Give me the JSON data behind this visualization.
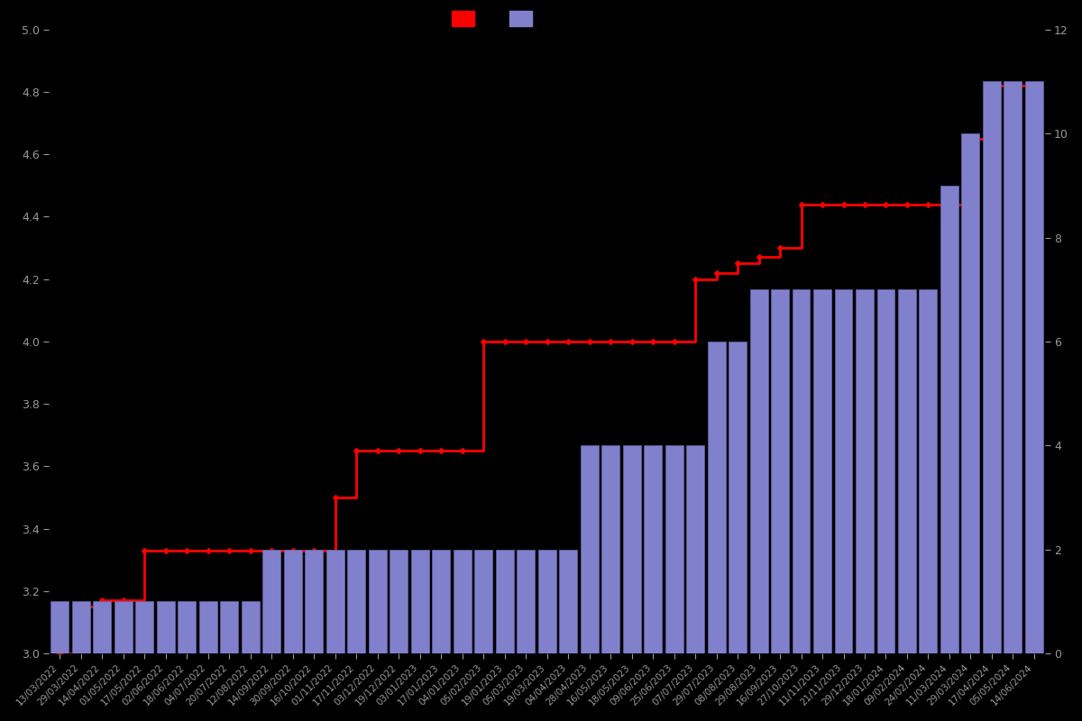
{
  "background_color": "#000000",
  "text_color": "#999999",
  "bar_color": "#8080cc",
  "bar_edge_color": "#6666aa",
  "line_color": "#ff0000",
  "marker_color": "#ff0000",
  "ylim_left": [
    3.0,
    5.0
  ],
  "ylim_right": [
    0,
    12
  ],
  "yticks_left": [
    3.0,
    3.2,
    3.4,
    3.6,
    3.8,
    4.0,
    4.2,
    4.4,
    4.6,
    4.8,
    5.0
  ],
  "yticks_right": [
    0,
    2,
    4,
    6,
    8,
    10,
    12
  ],
  "x_labels": [
    "13/03/2022",
    "29/03/2022",
    "14/04/2022",
    "01/05/2022",
    "17/05/2022",
    "02/06/2022",
    "18/06/2022",
    "04/07/2022",
    "20/07/2022",
    "12/08/2022",
    "14/09/2022",
    "30/09/2022",
    "16/10/2022",
    "01/11/2022",
    "17/11/2022",
    "03/12/2022",
    "19/12/2022",
    "03/01/2023",
    "17/01/2023",
    "04/01/2023",
    "05/02/2023",
    "19/01/2023",
    "05/03/2023",
    "19/03/2023",
    "04/04/2023",
    "28/04/2023",
    "16/05/2023",
    "18/05/2023",
    "09/06/2023",
    "25/06/2023",
    "07/07/2023",
    "29/07/2023",
    "08/08/2023",
    "29/08/2023",
    "16/09/2023",
    "27/10/2023",
    "11/11/2023",
    "21/11/2023",
    "29/12/2023",
    "18/01/2024",
    "09/02/2024",
    "24/02/2024",
    "11/03/2024",
    "29/03/2024",
    "17/04/2024",
    "05/05/2024",
    "14/06/2024"
  ],
  "bar_heights_right": [
    1,
    1,
    1,
    1,
    1,
    1,
    1,
    1,
    1,
    1,
    2,
    2,
    2,
    2,
    2,
    2,
    2,
    2,
    2,
    2,
    2,
    2,
    2,
    2,
    2,
    4,
    4,
    4,
    4,
    4,
    4,
    6,
    6,
    7,
    7,
    7,
    7,
    7,
    7,
    7,
    7,
    7,
    9,
    10,
    11,
    11,
    11
  ],
  "avg_ratings": [
    3.0,
    3.15,
    3.17,
    3.17,
    3.33,
    3.33,
    3.33,
    3.33,
    3.33,
    3.33,
    3.33,
    3.33,
    3.33,
    3.5,
    3.65,
    3.65,
    3.65,
    3.65,
    3.65,
    3.65,
    4.0,
    4.0,
    4.0,
    4.0,
    4.0,
    4.0,
    4.0,
    4.0,
    4.0,
    4.0,
    4.2,
    4.22,
    4.25,
    4.27,
    4.3,
    4.44,
    4.44,
    4.44,
    4.44,
    4.44,
    4.44,
    4.44,
    4.44,
    4.65,
    4.82,
    4.82,
    4.82
  ]
}
